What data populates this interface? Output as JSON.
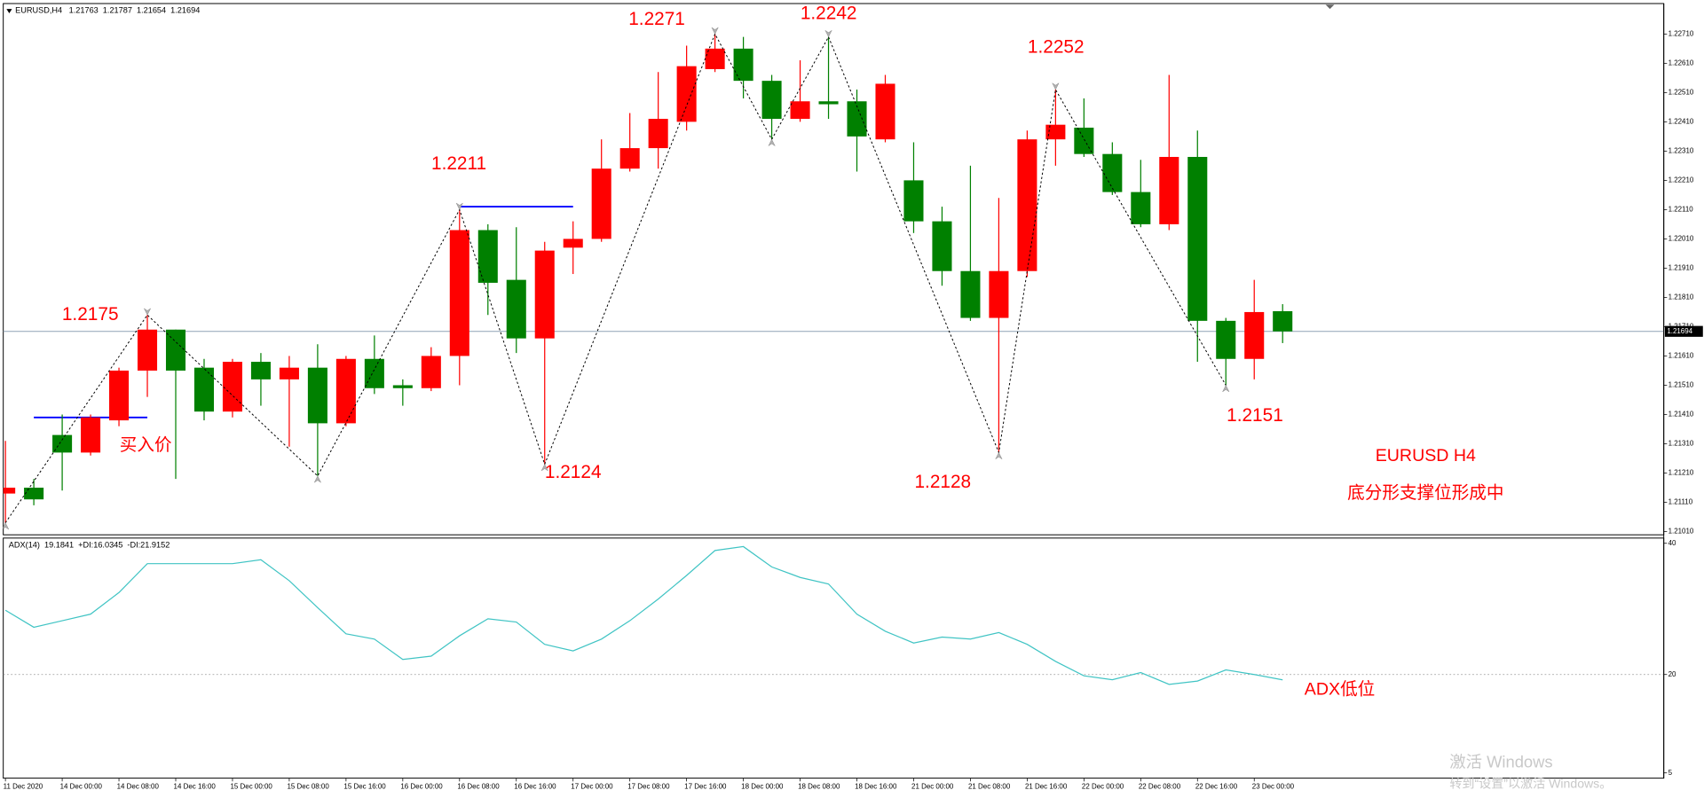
{
  "chart_data": [
    {
      "type": "candlestick",
      "title": "EURUSD,H4",
      "categories": [
        "11 Dec 2020",
        null,
        "14 Dec 00:00",
        null,
        "14 Dec 08:00",
        null,
        "14 Dec 16:00",
        null,
        "15 Dec 00:00",
        null,
        "15 Dec 08:00",
        null,
        "15 Dec 16:00",
        null,
        "16 Dec 00:00",
        null,
        "16 Dec 08:00",
        null,
        "16 Dec 16:00",
        null,
        "17 Dec 00:00",
        null,
        "17 Dec 08:00",
        null,
        "17 Dec 16:00",
        null,
        "18 Dec 00:00",
        null,
        "18 Dec 08:00",
        null,
        "18 Dec 16:00",
        null,
        "21 Dec 00:00",
        null,
        "21 Dec 08:00",
        null,
        "21 Dec 16:00",
        null,
        "22 Dec 00:00",
        null,
        "22 Dec 08:00",
        null,
        "22 Dec 16:00",
        null,
        "23 Dec 00:00",
        null
      ],
      "open": [
        1.2114,
        1.2116,
        1.2134,
        1.2128,
        1.2139,
        1.2156,
        1.217,
        1.2157,
        1.2142,
        1.2159,
        1.2153,
        1.2157,
        1.2138,
        1.216,
        1.2151,
        1.215,
        1.2161,
        1.2204,
        1.2187,
        1.2167,
        1.2198,
        1.2201,
        1.2225,
        1.2232,
        1.2241,
        1.2259,
        1.2266,
        1.2255,
        1.2242,
        1.2248,
        1.2248,
        1.2235,
        1.2221,
        1.2207,
        1.219,
        1.2174,
        1.219,
        1.2235,
        1.2239,
        1.223,
        1.2217,
        1.2206,
        1.2229,
        1.2173,
        1.216,
        1.21763
      ],
      "high": [
        1.2132,
        1.2119,
        1.2141,
        1.2141,
        1.2157,
        1.2175,
        1.217,
        1.216,
        1.216,
        1.2162,
        1.2161,
        1.2165,
        1.2161,
        1.2168,
        1.2153,
        1.2164,
        1.2211,
        1.2206,
        1.2205,
        1.22,
        1.2207,
        1.2235,
        1.2244,
        1.2258,
        1.2267,
        1.2271,
        1.227,
        1.2257,
        1.2262,
        1.227,
        1.2252,
        1.2257,
        1.2234,
        1.2212,
        1.2226,
        1.2215,
        1.2238,
        1.2252,
        1.2249,
        1.2234,
        1.2228,
        1.2257,
        1.2238,
        1.2174,
        1.2187,
        1.21787
      ],
      "low": [
        1.2104,
        1.211,
        1.2115,
        1.2127,
        1.2137,
        1.2147,
        1.2119,
        1.2139,
        1.214,
        1.2144,
        1.213,
        1.212,
        1.2137,
        1.2148,
        1.2144,
        1.2149,
        1.2151,
        1.2175,
        1.2162,
        1.2124,
        1.2189,
        1.22,
        1.2224,
        1.2225,
        1.2238,
        1.2258,
        1.2249,
        1.2235,
        1.2241,
        1.2242,
        1.2224,
        1.2234,
        1.2203,
        1.2185,
        1.2173,
        1.2128,
        1.2188,
        1.2226,
        1.2229,
        1.2216,
        1.2205,
        1.2204,
        1.2159,
        1.2151,
        1.2153,
        1.21654
      ],
      "close": [
        1.2116,
        1.2112,
        1.2128,
        1.214,
        1.2156,
        1.217,
        1.2156,
        1.2142,
        1.2159,
        1.2153,
        1.2157,
        1.2138,
        1.216,
        1.215,
        1.215,
        1.2161,
        1.2204,
        1.2186,
        1.2167,
        1.2197,
        1.2201,
        1.2225,
        1.2232,
        1.2242,
        1.226,
        1.2266,
        1.2255,
        1.2242,
        1.2248,
        1.2247,
        1.2236,
        1.2254,
        1.2207,
        1.219,
        1.2174,
        1.219,
        1.2235,
        1.224,
        1.223,
        1.2217,
        1.2206,
        1.2229,
        1.2173,
        1.216,
        1.2176,
        1.21694
      ],
      "up_color": "#ff0000",
      "down_color": "#008000",
      "ylim": [
        1.20999,
        1.22814
      ],
      "yticks": [
        {
          "value": 1.2271,
          "label": "1.22710"
        },
        {
          "value": 1.2261,
          "label": "1.22610"
        },
        {
          "value": 1.2251,
          "label": "1.22510"
        },
        {
          "value": 1.2241,
          "label": "1.22410"
        },
        {
          "value": 1.2231,
          "label": "1.22310"
        },
        {
          "value": 1.2221,
          "label": "1.22210"
        },
        {
          "value": 1.2211,
          "label": "1.22110"
        },
        {
          "value": 1.2201,
          "label": "1.22010"
        },
        {
          "value": 1.2191,
          "label": "1.21910"
        },
        {
          "value": 1.2181,
          "label": "1.21810"
        },
        {
          "value": 1.2171,
          "label": "1.21710"
        },
        {
          "value": 1.2161,
          "label": "1.21610"
        },
        {
          "value": 1.2151,
          "label": "1.21510"
        },
        {
          "value": 1.2141,
          "label": "1.21410"
        },
        {
          "value": 1.2131,
          "label": "1.21310"
        },
        {
          "value": 1.2121,
          "label": "1.21210"
        },
        {
          "value": 1.2111,
          "label": "1.21110"
        },
        {
          "value": 1.2101,
          "label": "1.21010"
        }
      ],
      "zigzag": {
        "color": "#000000",
        "index": [
          0,
          5,
          11,
          16,
          19,
          25,
          27,
          29,
          35,
          37,
          43
        ],
        "values": [
          1.2104,
          1.2175,
          1.212,
          1.2211,
          1.2124,
          1.2271,
          1.2235,
          1.227,
          1.2128,
          1.2252,
          1.2151
        ]
      },
      "levels": [
        {
          "value": 1.214,
          "from": 1,
          "to": 5,
          "color": "#0000ff"
        },
        {
          "value": 1.2212,
          "from": 16,
          "to": 20,
          "color": "#0000ff"
        }
      ],
      "annotations": [
        "1.2175",
        "买入价",
        "1.2211",
        "1.2124",
        "1.2271",
        "1.2242",
        "1.2252",
        "1.2128",
        "1.2151",
        "EURUSD H4",
        "底分形支撑位形成中"
      ]
    },
    {
      "type": "line",
      "title": "ADX(14)",
      "values": [
        29.8,
        27.2,
        28.2,
        29.2,
        32.5,
        36.9,
        36.9,
        36.9,
        36.9,
        37.5,
        34.3,
        30.2,
        26.2,
        25.4,
        22.3,
        22.8,
        25.9,
        28.5,
        28.0,
        24.6,
        23.6,
        25.4,
        28.2,
        31.5,
        35.1,
        38.9,
        39.5,
        36.4,
        34.8,
        33.8,
        29.2,
        26.6,
        24.8,
        25.7,
        25.4,
        26.4,
        24.6,
        22.0,
        19.8,
        19.2,
        20.3,
        18.5,
        19.0,
        20.7,
        20.0,
        19.1841
      ],
      "color": "#40c4c4",
      "di_plus": {
        "label": "+DI:",
        "value": 16.0345
      },
      "di_minus": {
        "label": "-DI:",
        "value": 21.9152
      },
      "ylim": [
        4.2,
        40.8
      ],
      "yticks": [
        40,
        20,
        5
      ],
      "levels": [
        20
      ],
      "annotations": [
        "ADX低位"
      ]
    }
  ],
  "watermark": [
    "激活 Windows",
    "转到“设置”以激活 Windows。"
  ]
}
